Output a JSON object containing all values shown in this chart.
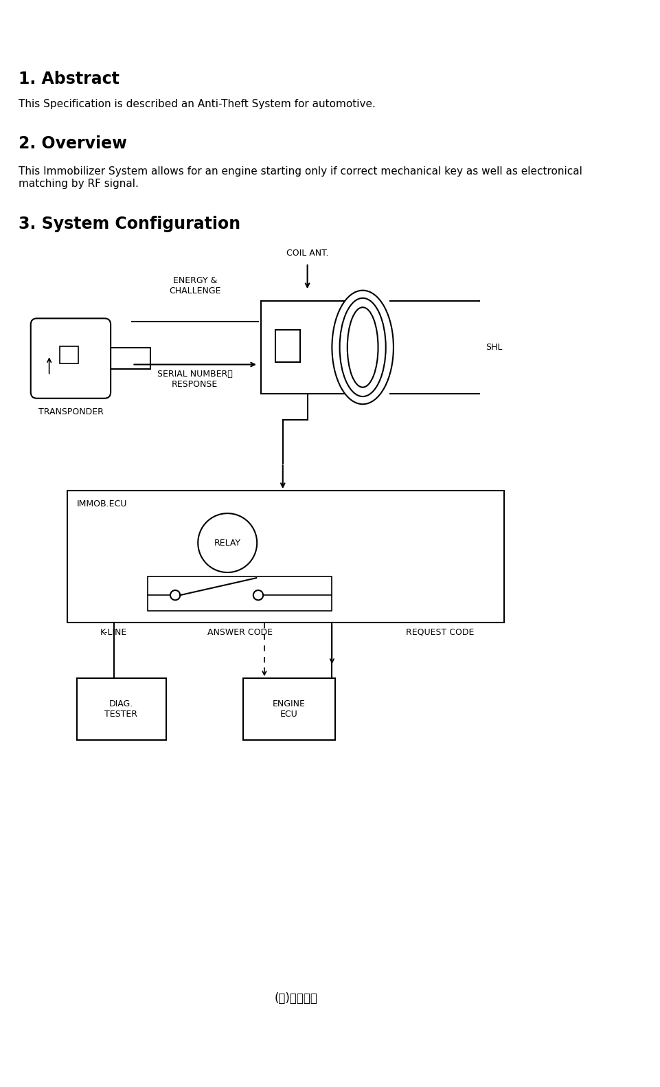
{
  "title1": "1. Abstract",
  "abstract_text": "This Specification is described an Anti-Theft System for automotive.",
  "title2": "2. Overview",
  "overview_text": "This Immobilizer System allows for an engine starting only if correct mechanical key as well as electronical\nmatching by RF signal.",
  "title3": "3. System Configuration",
  "label_coil_ant": "COIL ANT.",
  "label_shl": "SHL",
  "label_energy": "ENERGY &\nCHALLENGE",
  "label_serial": "SERIAL NUMBERと\nRESPONSE",
  "label_serial2": "SERIAL NUMBER와\nRESPONSE",
  "label_transponder": "TRANSPONDER",
  "label_immob": "IMMOB.ECU",
  "label_relay": "RELAY",
  "label_kline": "K-LINE",
  "label_answer": "ANSWER CODE",
  "label_request": "REQUEST CODE",
  "label_diag": "DIAG.\nTESTER",
  "label_engine": "ENGINE\nECU",
  "label_footer": "(주)신창전기",
  "bg_color": "#ffffff",
  "line_color": "#000000",
  "text_color": "#000000"
}
